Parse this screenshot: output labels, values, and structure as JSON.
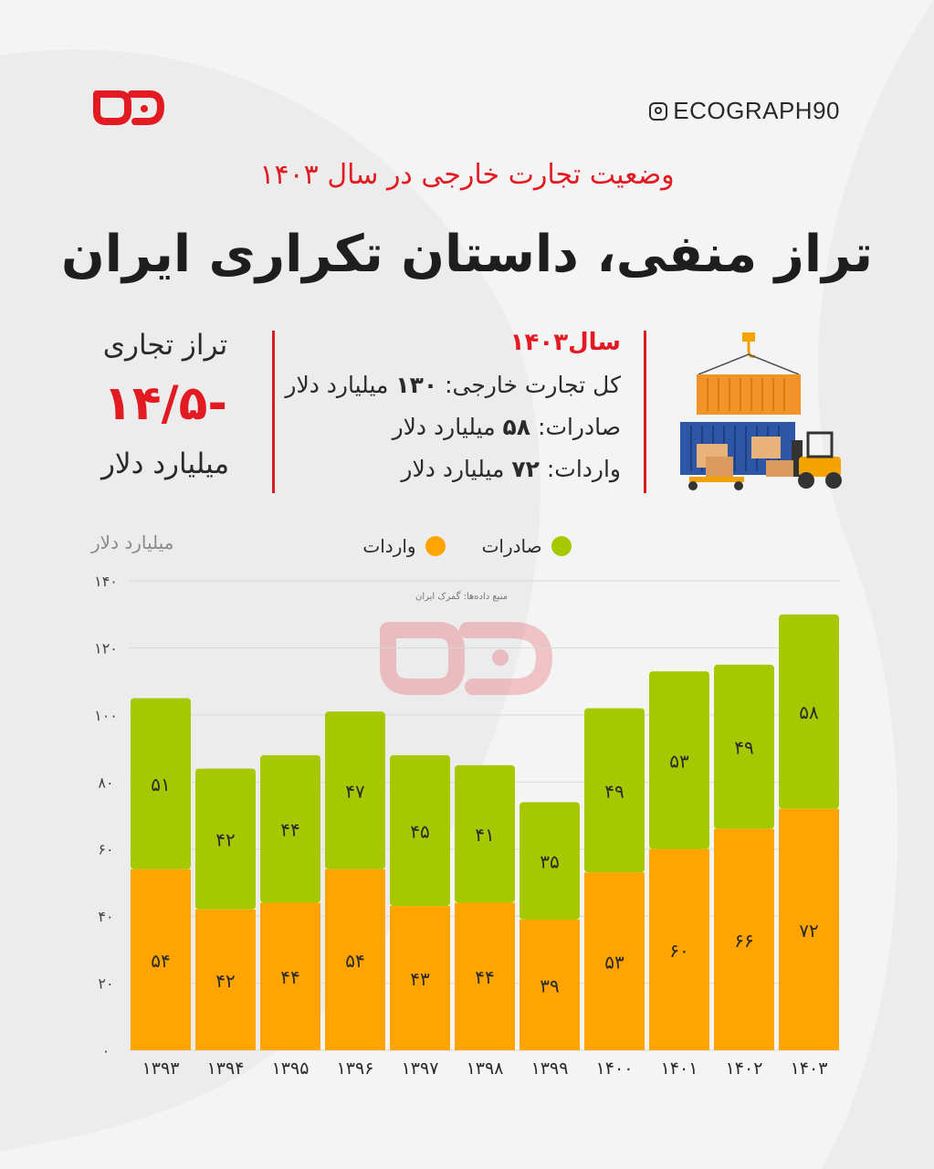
{
  "brand": {
    "handle": "ECOGRAPH90",
    "logo_name": "eco-logo",
    "accent": "#e21b23"
  },
  "header": {
    "subtitle": "وضعیت تجارت خارجی در سال ۱۴۰۳",
    "title": "تراز منفی، داستان تکراری ایران"
  },
  "balance": {
    "label": "تراز تجاری",
    "value": "-۱۴/۵",
    "unit": "میلیارد دلار"
  },
  "stats": {
    "year": "سال۱۴۰۳",
    "total_label": "کل تجارت خارجی:",
    "total_value": "۱۳۰",
    "exports_label": "صادرات:",
    "exports_value": "۵۸",
    "imports_label": "واردات:",
    "imports_value": "۷۲",
    "unit": "میلیارد دلار"
  },
  "legend": {
    "exports": "صادرات",
    "imports": "واردات"
  },
  "source_note": "منبع داده‌ها: گمرک ایران",
  "chart_data": {
    "type": "bar",
    "stacked": true,
    "ylabel": "میلیارد دلار",
    "ylim": [
      0,
      140
    ],
    "yticks": [
      0,
      20,
      40,
      60,
      80,
      100,
      120,
      140
    ],
    "ytick_labels": [
      "۰",
      "۲۰",
      "۴۰",
      "۶۰",
      "۸۰",
      "۱۰۰",
      "۱۲۰",
      "۱۴۰"
    ],
    "grid": true,
    "legend_position": "top-center",
    "categories": [
      "۱۳۹۳",
      "۱۳۹۴",
      "۱۳۹۵",
      "۱۳۹۶",
      "۱۳۹۷",
      "۱۳۹۸",
      "۱۳۹۹",
      "۱۴۰۰",
      "۱۴۰۱",
      "۱۴۰۲",
      "۱۴۰۳"
    ],
    "series": [
      {
        "name": "واردات",
        "color": "#ffa400",
        "values": [
          54,
          42,
          44,
          54,
          43,
          44,
          39,
          53,
          60,
          66,
          72
        ],
        "labels": [
          "۵۴",
          "۴۲",
          "۴۴",
          "۵۴",
          "۴۳",
          "۴۴",
          "۳۹",
          "۵۳",
          "۶۰",
          "۶۶",
          "۷۲"
        ]
      },
      {
        "name": "صادرات",
        "color": "#a6c800",
        "values": [
          51,
          42,
          44,
          47,
          45,
          41,
          35,
          49,
          53,
          49,
          58
        ],
        "labels": [
          "۵۱",
          "۴۲",
          "۴۴",
          "۴۷",
          "۴۵",
          "۴۱",
          "۳۵",
          "۴۹",
          "۵۳",
          "۴۹",
          "۵۸"
        ]
      }
    ]
  }
}
